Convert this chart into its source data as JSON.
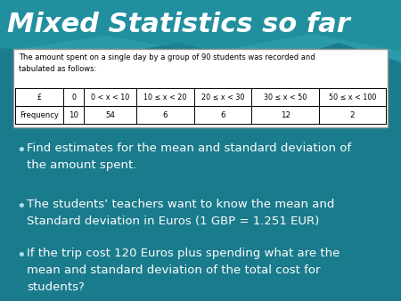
{
  "title": "Mixed Statistics so far",
  "bg_color": "#1a7b8c",
  "bg_color_dark": "#0d5f6e",
  "title_color": "white",
  "title_fontsize": 22,
  "table_intro": "The amount spent on a single day by a group of 90 students was recorded and\ntabulated as follows:",
  "table_headers": [
    "£",
    "0",
    "0 < x < 10",
    "10 ≤ x < 20",
    "20 ≤ x < 30",
    "30 ≤ x < 50",
    "50 ≤ x < 100"
  ],
  "table_row_label": "Frequency",
  "table_freq": [
    "10",
    "54",
    "6",
    "6",
    "12",
    "2"
  ],
  "bullet1": "Find estimates for the mean and standard deviation of\nthe amount spent.",
  "bullet2": "The students’ teachers want to know the mean and\nStandard deviation in Euros (1 GBP = 1.251 EUR)",
  "bullet3": "If the trip cost 120 Euros plus spending what are the\nmean and standard deviation of the total cost for\nstudents?",
  "bullet_color": "white",
  "bullet_fontsize": 9.5,
  "bullet_dot_color": "#aaddee",
  "table_intro_fontsize": 6.0,
  "table_header_fontsize": 5.8,
  "table_freq_fontsize": 6.2
}
